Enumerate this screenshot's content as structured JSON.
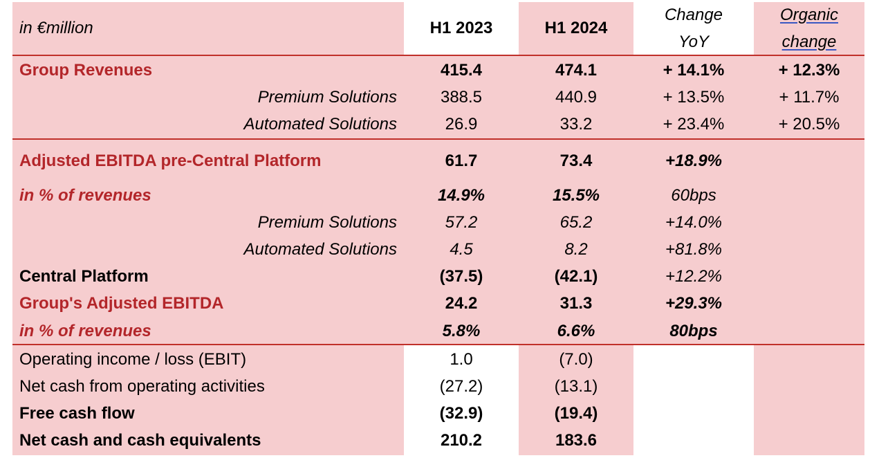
{
  "header": {
    "unit_label": "in €million",
    "col_h1_2023": "H1 2023",
    "col_h1_2024": "H1 2024",
    "col_change_line1": "Change",
    "col_change_line2": "YoY",
    "col_organic_line1": "Organic",
    "col_organic_line2": "change"
  },
  "rows": [
    {
      "label": "Group Revenues",
      "h1_2023": "415.4",
      "h1_2024": "474.1",
      "change": "+ 14.1%",
      "organic": "+ 12.3%"
    },
    {
      "label": "Premium Solutions",
      "h1_2023": "388.5",
      "h1_2024": "440.9",
      "change": "+ 13.5%",
      "organic": "+ 11.7%"
    },
    {
      "label": "Automated Solutions",
      "h1_2023": "26.9",
      "h1_2024": "33.2",
      "change": "+ 23.4%",
      "organic": "+ 20.5%"
    },
    {
      "label": "Adjusted EBITDA pre-Central Platform",
      "h1_2023": "61.7",
      "h1_2024": "73.4",
      "change": "+18.9%",
      "organic": ""
    },
    {
      "label": "in % of revenues",
      "h1_2023": "14.9%",
      "h1_2024": "15.5%",
      "change": "60bps",
      "organic": ""
    },
    {
      "label": "Premium Solutions",
      "h1_2023": "57.2",
      "h1_2024": "65.2",
      "change": "+14.0%",
      "organic": ""
    },
    {
      "label": "Automated Solutions",
      "h1_2023": "4.5",
      "h1_2024": "8.2",
      "change": "+81.8%",
      "organic": ""
    },
    {
      "label": "Central Platform",
      "h1_2023": "(37.5)",
      "h1_2024": "(42.1)",
      "change": "+12.2%",
      "organic": ""
    },
    {
      "label": "Group's Adjusted EBITDA",
      "h1_2023": "24.2",
      "h1_2024": "31.3",
      "change": "+29.3%",
      "organic": ""
    },
    {
      "label": "in % of revenues",
      "h1_2023": "5.8%",
      "h1_2024": "6.6%",
      "change": "80bps",
      "organic": ""
    },
    {
      "label": "Operating income / loss (EBIT)",
      "h1_2023": "1.0",
      "h1_2024": "(7.0)",
      "change": "",
      "organic": ""
    },
    {
      "label": "Net cash from operating activities",
      "h1_2023": "(27.2)",
      "h1_2024": "(13.1)",
      "change": "",
      "organic": ""
    },
    {
      "label": "Free cash flow",
      "h1_2023": "(32.9)",
      "h1_2024": "(19.4)",
      "change": "",
      "organic": ""
    },
    {
      "label": "Net cash and cash equivalents",
      "h1_2023": "210.2",
      "h1_2024": "183.6",
      "change": "",
      "organic": ""
    }
  ],
  "colors": {
    "accent_red": "#b3262a",
    "pink_fill": "#f6cdcf",
    "rule_red": "#c0302a"
  }
}
